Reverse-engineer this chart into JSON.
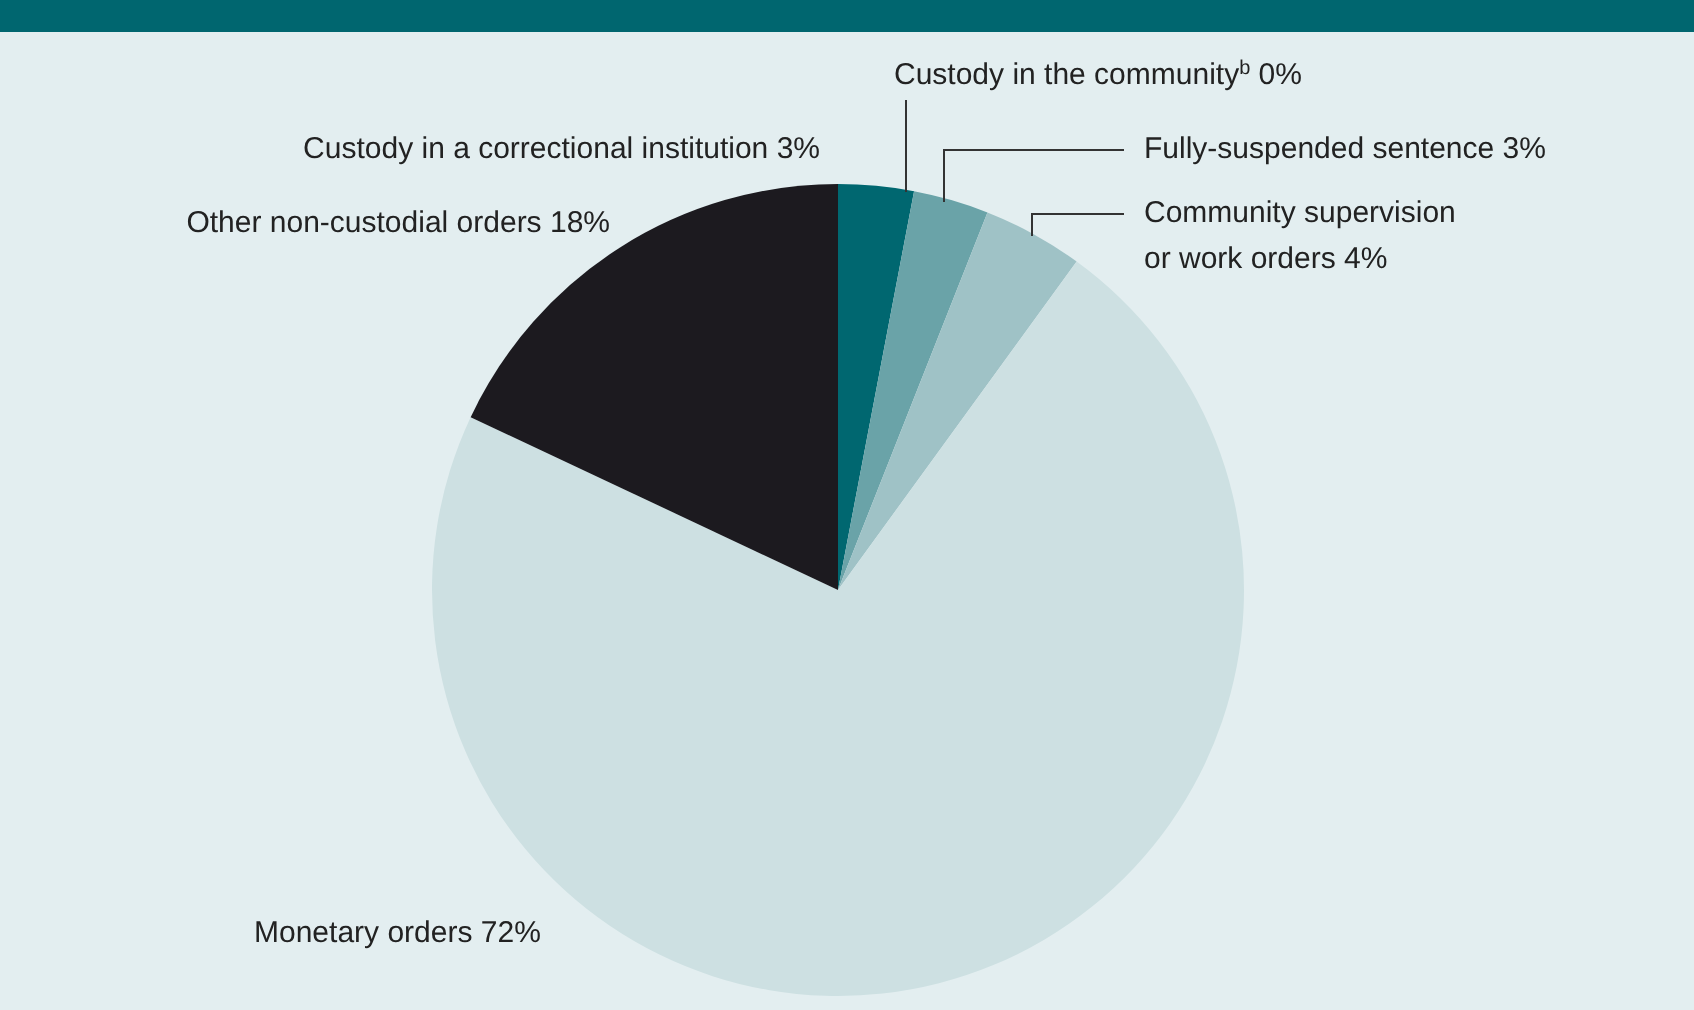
{
  "chart_data": {
    "type": "pie",
    "categories": [
      "Custody in a correctional institution",
      "Custody in the community$^{b}$",
      "Fully-suspended sentence",
      "Community supervision or work orders",
      "Monetary orders",
      "Other non-custodial orders"
    ],
    "values": [
      3,
      0,
      3,
      4,
      72,
      18
    ],
    "value_labels": [
      "3%",
      "0%",
      "3%",
      "4%",
      "72%",
      "18%"
    ],
    "colors": [
      "#006770",
      "#2f7f86",
      "#6aa3a8",
      "#9fc2c6",
      "#cde0e2",
      "#1c1a1f"
    ],
    "legend": false
  }
}
